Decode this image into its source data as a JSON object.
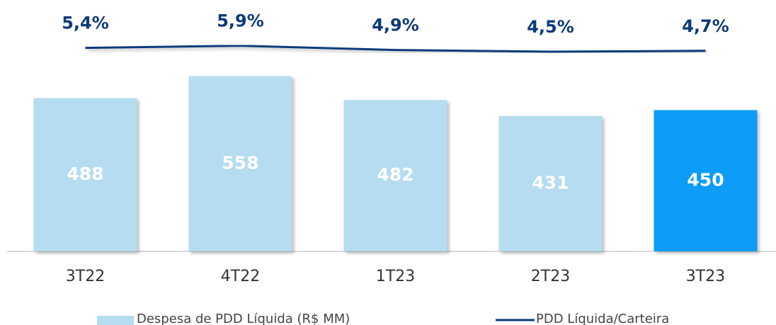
{
  "chart_data": {
    "type": "bar_line",
    "categories": [
      "3T22",
      "4T22",
      "1T23",
      "2T23",
      "3T23"
    ],
    "series": [
      {
        "name": "Despesa de PDD Líquida (R$ MM)",
        "type": "bar",
        "color": "#b5dcf0",
        "colors": [
          "#b5dcf0",
          "#b5dcf0",
          "#b5dcf0",
          "#b5dcf0",
          "#0a9cf7"
        ],
        "values": [
          488,
          558,
          482,
          431,
          450
        ]
      },
      {
        "name": "PDD Líquida/Carteira",
        "type": "line",
        "axis": "y2",
        "color": "#0d3a7a",
        "values": [
          5.4,
          5.9,
          4.9,
          4.5,
          4.7
        ],
        "value_labels": [
          "5,4%",
          "5,9%",
          "4,9%",
          "4,5%",
          "4,7%"
        ]
      }
    ],
    "ylim": [
      0,
      600
    ],
    "y2lim": [
      0,
      10
    ]
  }
}
